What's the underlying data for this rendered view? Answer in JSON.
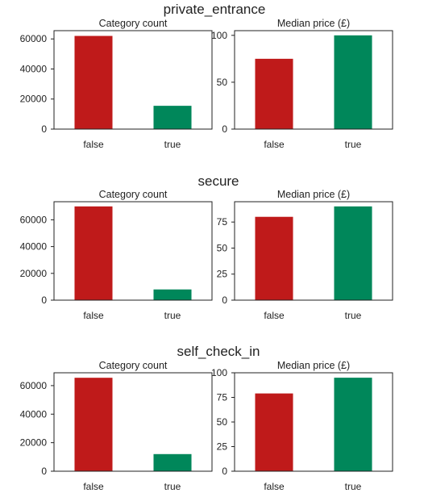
{
  "colors": {
    "false": "#bf1a1a",
    "true": "#00875a"
  },
  "chart_data": [
    {
      "group_title": "private_entrance",
      "panels": [
        {
          "type": "bar",
          "title": "Category count",
          "categories": [
            "false",
            "true"
          ],
          "values": [
            62000,
            15500
          ],
          "ylim": [
            0,
            65500
          ],
          "yticks": [
            0,
            20000,
            40000,
            60000
          ],
          "ytick_labels": [
            "0",
            "20000",
            "40000",
            "60000"
          ]
        },
        {
          "type": "bar",
          "title": "Median price (£)",
          "categories": [
            "false",
            "true"
          ],
          "values": [
            75,
            100
          ],
          "ylim": [
            0,
            105
          ],
          "yticks": [
            0,
            50,
            100
          ],
          "ytick_labels": [
            "0",
            "50",
            "100"
          ]
        }
      ]
    },
    {
      "group_title": "secure",
      "panels": [
        {
          "type": "bar",
          "title": "Category count",
          "categories": [
            "false",
            "true"
          ],
          "values": [
            70000,
            8000
          ],
          "ylim": [
            0,
            73500
          ],
          "yticks": [
            0,
            20000,
            40000,
            60000
          ],
          "ytick_labels": [
            "0",
            "20000",
            "40000",
            "60000"
          ]
        },
        {
          "type": "bar",
          "title": "Median price (£)",
          "categories": [
            "false",
            "true"
          ],
          "values": [
            80,
            90
          ],
          "ylim": [
            0,
            94.5
          ],
          "yticks": [
            0,
            25,
            50,
            75
          ],
          "ytick_labels": [
            "0",
            "25",
            "50",
            "75"
          ]
        }
      ]
    },
    {
      "group_title": "self_check_in",
      "panels": [
        {
          "type": "bar",
          "title": "Category count",
          "categories": [
            "false",
            "true"
          ],
          "values": [
            65500,
            12000
          ],
          "ylim": [
            0,
            69000
          ],
          "yticks": [
            0,
            20000,
            40000,
            60000
          ],
          "ytick_labels": [
            "0",
            "20000",
            "40000",
            "60000"
          ]
        },
        {
          "type": "bar",
          "title": "Median price (£)",
          "categories": [
            "false",
            "true"
          ],
          "values": [
            79,
            95
          ],
          "ylim": [
            0,
            100
          ],
          "yticks": [
            0,
            25,
            50,
            75,
            100
          ],
          "ytick_labels": [
            "0",
            "25",
            "50",
            "75",
            "100"
          ]
        }
      ]
    }
  ]
}
